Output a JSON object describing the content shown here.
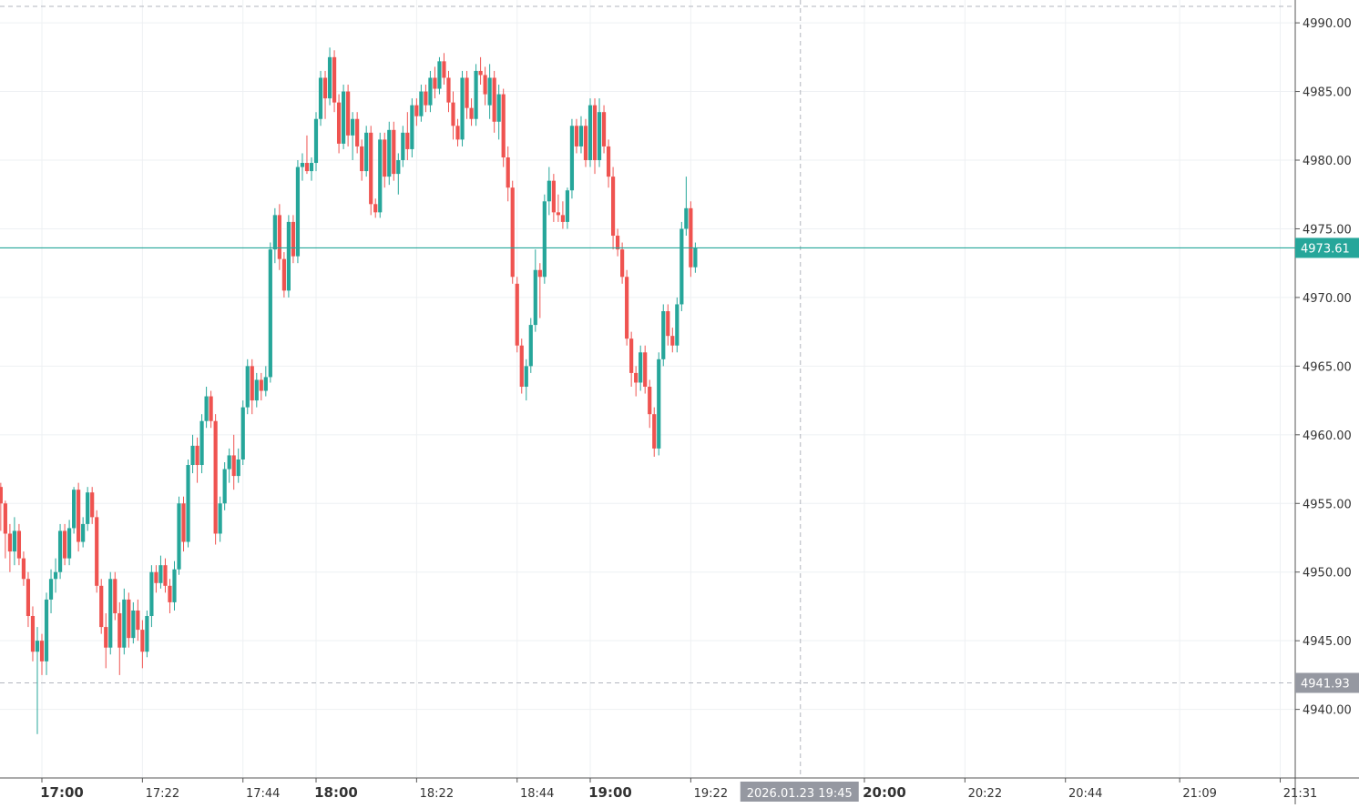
{
  "chart_data": {
    "type": "candlestick",
    "instrument_date": "2026.01.23",
    "colors": {
      "up": "#26a69a",
      "down": "#ef5350",
      "grid": "#eef0f3",
      "axis_text": "#333333",
      "crosshair": "#b2b5be",
      "price_line": "#26a69a",
      "price_label_bg": "#26a69a",
      "crosshair_label_bg": "#9598a1"
    },
    "ylim": [
      4933.5,
      4991.2
    ],
    "y_ticks": [
      "4940.00",
      "4945.00",
      "4950.00",
      "4955.00",
      "4960.00",
      "4965.00",
      "4970.00",
      "4975.00",
      "4980.00",
      "4985.00",
      "4990.00"
    ],
    "x_ticks": [
      {
        "label": "17:00",
        "minute": 0,
        "bold": true
      },
      {
        "label": "17:22",
        "minute": 22,
        "bold": false
      },
      {
        "label": "17:44",
        "minute": 44,
        "bold": false
      },
      {
        "label": "18:00",
        "minute": 60,
        "bold": true
      },
      {
        "label": "18:22",
        "minute": 82,
        "bold": false
      },
      {
        "label": "18:44",
        "minute": 104,
        "bold": false
      },
      {
        "label": "19:00",
        "minute": 120,
        "bold": true
      },
      {
        "label": "19:22",
        "minute": 142,
        "bold": false
      },
      {
        "label": "20:00",
        "minute": 180,
        "bold": true
      },
      {
        "label": "20:22",
        "minute": 202,
        "bold": false
      },
      {
        "label": "20:44",
        "minute": 224,
        "bold": false
      },
      {
        "label": "21:09",
        "minute": 249,
        "bold": false
      },
      {
        "label": "21:31",
        "minute": 271,
        "bold": false
      }
    ],
    "current_price": {
      "value": 4973.61,
      "label": "4973.61"
    },
    "crosshair": {
      "time_label": "2026.01.23 19:45",
      "minute": 165,
      "price_label": "4941.93",
      "price": 4941.93,
      "upper_price": 4991.2
    },
    "candles_start_minute": -9,
    "candles_ohlc": [
      [
        4956.2,
        4956.5,
        4953.0,
        4955.0
      ],
      [
        4955.0,
        4955.2,
        4951.0,
        4952.8
      ],
      [
        4952.8,
        4953.5,
        4950.0,
        4951.5
      ],
      [
        4951.5,
        4954.0,
        4950.5,
        4953.0
      ],
      [
        4953.0,
        4953.5,
        4950.5,
        4951.0
      ],
      [
        4951.0,
        4951.5,
        4949.0,
        4949.5
      ],
      [
        4949.5,
        4950.0,
        4946.0,
        4946.8
      ],
      [
        4946.8,
        4947.5,
        4943.5,
        4944.2
      ],
      [
        4944.2,
        4946.0,
        4938.2,
        4945.0
      ],
      [
        4945.0,
        4945.5,
        4942.5,
        4943.5
      ],
      [
        4943.5,
        4948.5,
        4942.5,
        4948.0
      ],
      [
        4948.0,
        4950.2,
        4947.0,
        4949.5
      ],
      [
        4949.5,
        4951.0,
        4948.5,
        4950.0
      ],
      [
        4950.0,
        4953.5,
        4949.5,
        4953.0
      ],
      [
        4953.0,
        4953.5,
        4950.5,
        4951.0
      ],
      [
        4951.0,
        4953.8,
        4950.5,
        4953.2
      ],
      [
        4953.2,
        4956.2,
        4952.8,
        4956.0
      ],
      [
        4956.0,
        4956.5,
        4951.5,
        4952.2
      ],
      [
        4952.2,
        4954.0,
        4951.8,
        4953.5
      ],
      [
        4953.5,
        4956.2,
        4953.0,
        4955.8
      ],
      [
        4955.8,
        4956.2,
        4953.5,
        4954.0
      ],
      [
        4954.0,
        4954.5,
        4948.5,
        4949.0
      ],
      [
        4949.0,
        4949.5,
        4945.5,
        4946.0
      ],
      [
        4946.0,
        4947.0,
        4943.0,
        4944.5
      ],
      [
        4944.5,
        4950.0,
        4944.0,
        4949.5
      ],
      [
        4949.5,
        4950.0,
        4946.5,
        4947.0
      ],
      [
        4947.0,
        4947.8,
        4942.5,
        4944.5
      ],
      [
        4944.5,
        4948.8,
        4944.0,
        4948.0
      ],
      [
        4948.0,
        4948.5,
        4944.5,
        4945.2
      ],
      [
        4945.2,
        4947.8,
        4944.8,
        4947.2
      ],
      [
        4947.2,
        4948.0,
        4945.0,
        4945.8
      ],
      [
        4945.8,
        4946.5,
        4943.0,
        4944.2
      ],
      [
        4944.2,
        4947.2,
        4943.8,
        4946.8
      ],
      [
        4946.8,
        4950.5,
        4946.0,
        4950.0
      ],
      [
        4950.0,
        4950.5,
        4948.5,
        4949.2
      ],
      [
        4949.2,
        4951.2,
        4948.8,
        4950.5
      ],
      [
        4950.5,
        4951.0,
        4948.5,
        4949.0
      ],
      [
        4949.0,
        4949.5,
        4947.0,
        4947.8
      ],
      [
        4947.8,
        4950.8,
        4947.2,
        4950.2
      ],
      [
        4950.2,
        4955.5,
        4949.8,
        4955.0
      ],
      [
        4955.0,
        4955.5,
        4951.5,
        4952.2
      ],
      [
        4952.2,
        4958.2,
        4951.8,
        4957.8
      ],
      [
        4957.8,
        4960.0,
        4957.2,
        4959.2
      ],
      [
        4959.2,
        4959.8,
        4956.5,
        4957.8
      ],
      [
        4957.8,
        4961.5,
        4957.2,
        4961.0
      ],
      [
        4961.0,
        4963.5,
        4960.5,
        4962.8
      ],
      [
        4962.8,
        4963.2,
        4960.5,
        4961.0
      ],
      [
        4961.0,
        4961.5,
        4952.0,
        4952.8
      ],
      [
        4952.8,
        4955.5,
        4952.2,
        4955.0
      ],
      [
        4955.0,
        4958.0,
        4954.5,
        4957.5
      ],
      [
        4957.5,
        4959.0,
        4956.5,
        4958.5
      ],
      [
        4958.5,
        4960.0,
        4956.0,
        4957.0
      ],
      [
        4957.0,
        4959.0,
        4956.5,
        4958.2
      ],
      [
        4958.2,
        4962.5,
        4957.8,
        4962.0
      ],
      [
        4962.0,
        4965.5,
        4961.5,
        4965.0
      ],
      [
        4965.0,
        4965.5,
        4961.5,
        4962.5
      ],
      [
        4962.5,
        4964.5,
        4962.0,
        4964.0
      ],
      [
        4964.0,
        4964.5,
        4962.5,
        4963.2
      ],
      [
        4963.2,
        4965.0,
        4962.8,
        4964.2
      ],
      [
        4964.2,
        4974.0,
        4963.8,
        4973.5
      ],
      [
        4973.5,
        4976.5,
        4972.5,
        4976.0
      ],
      [
        4976.0,
        4976.8,
        4972.0,
        4972.8
      ],
      [
        4972.8,
        4973.3,
        4970.0,
        4970.5
      ],
      [
        4970.5,
        4976.0,
        4970.0,
        4975.5
      ],
      [
        4975.5,
        4976.0,
        4972.5,
        4973.0
      ],
      [
        4973.0,
        4980.0,
        4972.5,
        4979.5
      ],
      [
        4979.5,
        4980.5,
        4978.5,
        4979.8
      ],
      [
        4979.8,
        4981.8,
        4979.0,
        4979.2
      ],
      [
        4979.2,
        4980.2,
        4978.5,
        4979.8
      ],
      [
        4979.8,
        4983.5,
        4979.2,
        4983.0
      ],
      [
        4983.0,
        4986.5,
        4982.5,
        4986.0
      ],
      [
        4986.0,
        4986.5,
        4983.0,
        4984.5
      ],
      [
        4984.5,
        4988.2,
        4984.0,
        4987.5
      ],
      [
        4987.5,
        4988.0,
        4983.5,
        4984.2
      ],
      [
        4984.2,
        4984.8,
        4980.5,
        4981.2
      ],
      [
        4981.2,
        4985.5,
        4980.8,
        4985.0
      ],
      [
        4985.0,
        4985.5,
        4981.0,
        4981.8
      ],
      [
        4981.8,
        4983.5,
        4980.0,
        4983.0
      ],
      [
        4983.0,
        4983.5,
        4980.5,
        4981.0
      ],
      [
        4981.0,
        4981.5,
        4978.5,
        4979.2
      ],
      [
        4979.2,
        4982.5,
        4978.8,
        4982.0
      ],
      [
        4982.0,
        4982.5,
        4976.0,
        4976.8
      ],
      [
        4976.8,
        4977.2,
        4975.8,
        4976.2
      ],
      [
        4976.2,
        4982.0,
        4975.8,
        4981.5
      ],
      [
        4981.5,
        4982.0,
        4978.0,
        4978.8
      ],
      [
        4978.8,
        4982.8,
        4978.2,
        4982.2
      ],
      [
        4982.2,
        4982.8,
        4978.5,
        4979.0
      ],
      [
        4979.0,
        4980.5,
        4977.5,
        4980.0
      ],
      [
        4980.0,
        4982.5,
        4979.5,
        4982.0
      ],
      [
        4982.0,
        4983.5,
        4980.0,
        4980.8
      ],
      [
        4980.8,
        4984.5,
        4980.2,
        4984.0
      ],
      [
        4984.0,
        4984.5,
        4982.5,
        4983.2
      ],
      [
        4983.2,
        4985.5,
        4982.8,
        4985.0
      ],
      [
        4985.0,
        4985.5,
        4983.5,
        4984.0
      ],
      [
        4984.0,
        4986.5,
        4983.5,
        4986.0
      ],
      [
        4986.0,
        4986.8,
        4984.5,
        4985.2
      ],
      [
        4985.2,
        4987.5,
        4984.8,
        4987.2
      ],
      [
        4987.2,
        4987.8,
        4985.5,
        4986.0
      ],
      [
        4986.0,
        4986.5,
        4983.5,
        4984.2
      ],
      [
        4984.2,
        4985.0,
        4981.5,
        4982.5
      ],
      [
        4982.5,
        4983.0,
        4981.0,
        4981.5
      ],
      [
        4981.5,
        4986.5,
        4981.0,
        4986.0
      ],
      [
        4986.0,
        4986.5,
        4983.0,
        4983.8
      ],
      [
        4983.8,
        4984.5,
        4982.5,
        4983.0
      ],
      [
        4983.0,
        4987.0,
        4982.5,
        4986.5
      ],
      [
        4986.5,
        4987.5,
        4985.5,
        4986.2
      ],
      [
        4986.2,
        4986.8,
        4984.0,
        4984.8
      ],
      [
        4984.0,
        4987.0,
        4983.0,
        4986.0
      ],
      [
        4986.0,
        4986.5,
        4982.0,
        4982.8
      ],
      [
        4982.8,
        4985.5,
        4981.5,
        4984.8
      ],
      [
        4984.8,
        4985.2,
        4979.5,
        4980.2
      ],
      [
        4980.2,
        4981.0,
        4977.0,
        4978.0
      ],
      [
        4978.0,
        4978.5,
        4971.0,
        4971.5
      ],
      [
        4971.0,
        4971.5,
        4966.0,
        4966.5
      ],
      [
        4966.5,
        4967.0,
        4963.0,
        4963.5
      ],
      [
        4963.5,
        4965.5,
        4962.5,
        4965.0
      ],
      [
        4965.0,
        4968.5,
        4964.5,
        4968.0
      ],
      [
        4968.0,
        4973.5,
        4967.5,
        4972.0
      ],
      [
        4972.0,
        4972.5,
        4968.5,
        4971.5
      ],
      [
        4971.5,
        4977.5,
        4971.0,
        4977.0
      ],
      [
        4977.0,
        4979.5,
        4976.0,
        4978.5
      ],
      [
        4978.5,
        4979.0,
        4975.5,
        4976.2
      ],
      [
        4976.2,
        4977.5,
        4975.5,
        4976.0
      ],
      [
        4976.0,
        4977.0,
        4975.0,
        4975.5
      ],
      [
        4975.5,
        4978.0,
        4975.0,
        4977.8
      ],
      [
        4977.8,
        4983.0,
        4977.2,
        4982.5
      ],
      [
        4982.5,
        4983.0,
        4980.5,
        4981.0
      ],
      [
        4981.0,
        4983.2,
        4980.5,
        4982.5
      ],
      [
        4982.5,
        4983.0,
        4979.5,
        4980.0
      ],
      [
        4980.0,
        4984.5,
        4979.5,
        4984.0
      ],
      [
        4984.0,
        4984.5,
        4979.0,
        4980.0
      ],
      [
        4980.0,
        4984.5,
        4979.5,
        4983.5
      ],
      [
        4983.5,
        4984.0,
        4980.5,
        4981.0
      ],
      [
        4981.0,
        4981.5,
        4978.0,
        4978.8
      ],
      [
        4978.8,
        4979.5,
        4973.5,
        4974.5
      ],
      [
        4974.5,
        4975.0,
        4973.0,
        4973.5
      ],
      [
        4973.5,
        4974.0,
        4971.0,
        4971.5
      ],
      [
        4971.5,
        4972.0,
        4966.5,
        4967.0
      ],
      [
        4967.0,
        4967.5,
        4963.5,
        4964.5
      ],
      [
        4964.5,
        4965.0,
        4962.8,
        4963.8
      ],
      [
        4963.8,
        4966.5,
        4963.2,
        4966.0
      ],
      [
        4966.0,
        4966.5,
        4963.0,
        4963.5
      ],
      [
        4963.5,
        4964.0,
        4960.5,
        4961.5
      ],
      [
        4961.5,
        4962.0,
        4958.4,
        4959.0
      ],
      [
        4959.0,
        4966.0,
        4958.5,
        4965.5
      ],
      [
        4965.5,
        4969.5,
        4965.0,
        4969.0
      ],
      [
        4969.0,
        4969.5,
        4966.5,
        4967.2
      ],
      [
        4967.2,
        4967.8,
        4966.0,
        4966.5
      ],
      [
        4966.5,
        4970.0,
        4966.0,
        4969.5
      ],
      [
        4969.5,
        4975.5,
        4969.0,
        4975.0
      ],
      [
        4975.0,
        4978.8,
        4974.5,
        4976.5
      ],
      [
        4976.5,
        4977.0,
        4971.5,
        4972.2
      ],
      [
        4972.2,
        4974.0,
        4971.8,
        4973.61
      ]
    ]
  }
}
